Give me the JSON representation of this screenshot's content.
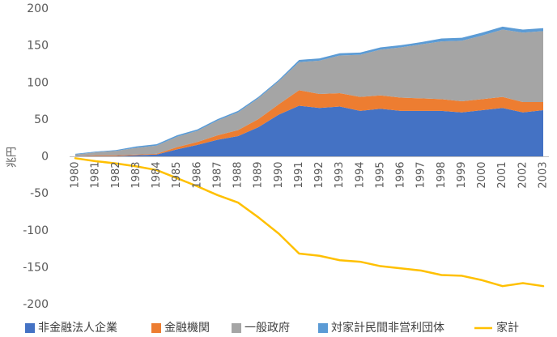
{
  "chart_data": {
    "type": "area",
    "title": "",
    "xlabel": "",
    "ylabel": "兆円",
    "ylim": [
      -200,
      200
    ],
    "yticks": [
      200,
      150,
      100,
      50,
      0,
      -50,
      -100,
      -150,
      -200
    ],
    "grid": false,
    "legend_position": "bottom",
    "categories": [
      "1980",
      "1981",
      "1982",
      "1983",
      "1984",
      "1985",
      "1986",
      "1987",
      "1988",
      "1989",
      "1990",
      "1991",
      "1992",
      "1993",
      "1994",
      "1995",
      "1996",
      "1997",
      "1998",
      "1999",
      "2000",
      "2001",
      "2002",
      "2003"
    ],
    "series": [
      {
        "name": "非金融法人企業",
        "type": "area",
        "color": "#4472c4",
        "values": [
          1,
          1,
          1,
          2,
          3,
          10,
          16,
          23,
          28,
          40,
          57,
          69,
          66,
          68,
          62,
          65,
          62,
          62,
          62,
          60,
          63,
          66,
          60,
          63
        ]
      },
      {
        "name": "金融機関",
        "type": "area",
        "color": "#ed7d31",
        "values": [
          0,
          1,
          1,
          1,
          1,
          3,
          4,
          6,
          8,
          11,
          14,
          21,
          19,
          18,
          19,
          18,
          18,
          17,
          16,
          15,
          15,
          15,
          14,
          11
        ]
      },
      {
        "name": "一般政府",
        "type": "area",
        "color": "#a5a5a5",
        "values": [
          2,
          4,
          6,
          9,
          11,
          14,
          15,
          20,
          24,
          28,
          31,
          38,
          45,
          51,
          57,
          62,
          68,
          73,
          78,
          82,
          86,
          91,
          94,
          96
        ]
      },
      {
        "name": "対家計民間非営利団体",
        "type": "area",
        "color": "#5b9bd5",
        "values": [
          1,
          1,
          1,
          2,
          2,
          2,
          2,
          2,
          2,
          2,
          2,
          3,
          3,
          3,
          3,
          3,
          3,
          3,
          4,
          4,
          4,
          4,
          4,
          4
        ]
      },
      {
        "name": "家計",
        "type": "line",
        "color": "#ffc000",
        "values": [
          -2,
          -6,
          -9,
          -13,
          -18,
          -29,
          -40,
          -52,
          -62,
          -82,
          -104,
          -131,
          -134,
          -140,
          -142,
          -148,
          -151,
          -154,
          -160,
          -161,
          -167,
          -175,
          -171,
          -175
        ]
      }
    ]
  }
}
